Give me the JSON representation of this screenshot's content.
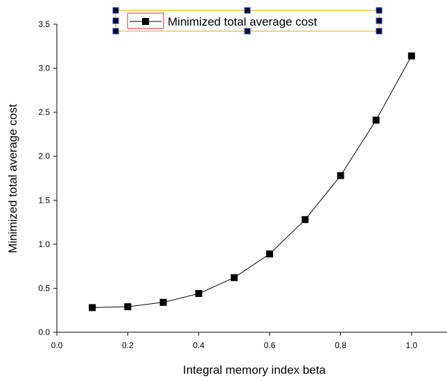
{
  "chart_data": {
    "type": "line",
    "xlabel": "Integral memory index beta",
    "ylabel": "Minimized total average cost",
    "xlim": [
      0.0,
      1.1
    ],
    "ylim": [
      0.0,
      3.5
    ],
    "xticks": [
      "0.0",
      "0.2",
      "0.4",
      "0.6",
      "0.8",
      "1.0"
    ],
    "yticks": [
      "0.0",
      "0.5",
      "1.0",
      "1.5",
      "2.0",
      "2.5",
      "3.0",
      "3.5"
    ],
    "grid": false,
    "legend_position": "top-center",
    "series": [
      {
        "name": "Minimized total average cost",
        "marker": "square",
        "color": "#000000",
        "x": [
          0.1,
          0.2,
          0.3,
          0.4,
          0.5,
          0.6,
          0.7,
          0.8,
          0.9,
          1.0
        ],
        "y": [
          0.28,
          0.29,
          0.34,
          0.44,
          0.62,
          0.89,
          1.28,
          1.78,
          2.41,
          3.14
        ]
      }
    ]
  }
}
